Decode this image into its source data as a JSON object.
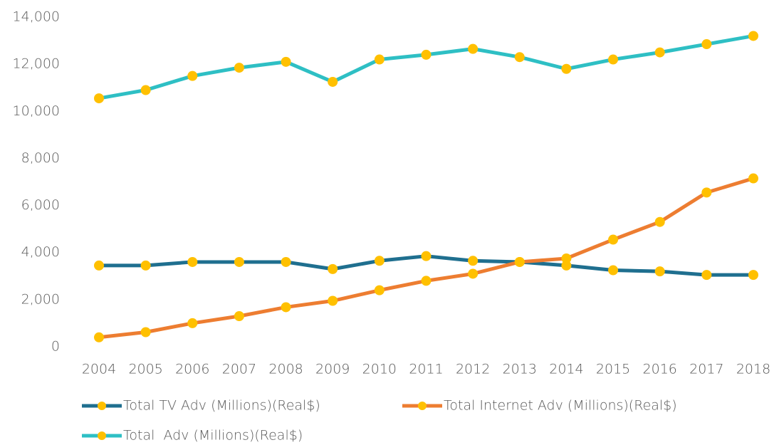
{
  "chart_data": {
    "type": "line",
    "categories": [
      "2004",
      "2005",
      "2006",
      "2007",
      "2008",
      "2009",
      "2010",
      "2011",
      "2012",
      "2013",
      "2014",
      "2015",
      "2016",
      "2017",
      "2018"
    ],
    "series": [
      {
        "name": "Total TV Adv (Millions)(Real$)",
        "color": "#1f6f8f",
        "values": [
          3450,
          3450,
          3600,
          3600,
          3600,
          3300,
          3650,
          3850,
          3650,
          3600,
          3450,
          3250,
          3200,
          3050,
          3050
        ]
      },
      {
        "name": "Total Internet Adv (Millions)(Real$)",
        "color": "#ed7d31",
        "values": [
          400,
          620,
          1000,
          1300,
          1680,
          1950,
          2400,
          2800,
          3100,
          3600,
          3750,
          4550,
          5300,
          6550,
          7150
        ]
      },
      {
        "name": "Total  Adv (Millions)(Real$)",
        "color": "#2ebfc4",
        "values": [
          10550,
          10900,
          11500,
          11850,
          12100,
          11250,
          12200,
          12400,
          12650,
          12300,
          11800,
          12200,
          12500,
          12850,
          13200
        ]
      }
    ],
    "marker_color": "#ffc000",
    "ylim": [
      0,
      14000
    ],
    "yticks": [
      0,
      {
        "value": 2000,
        "label": "2,000"
      },
      {
        "value": 4000,
        "label": "4,000"
      },
      {
        "value": 6000,
        "label": "6,000"
      },
      {
        "value": 8000,
        "label": "8,000"
      },
      {
        "value": 10000,
        "label": "10,000"
      },
      {
        "value": 12000,
        "label": "12,000"
      },
      {
        "value": 14000,
        "label": "14,000"
      }
    ],
    "grid": false,
    "legend": "bottom"
  }
}
